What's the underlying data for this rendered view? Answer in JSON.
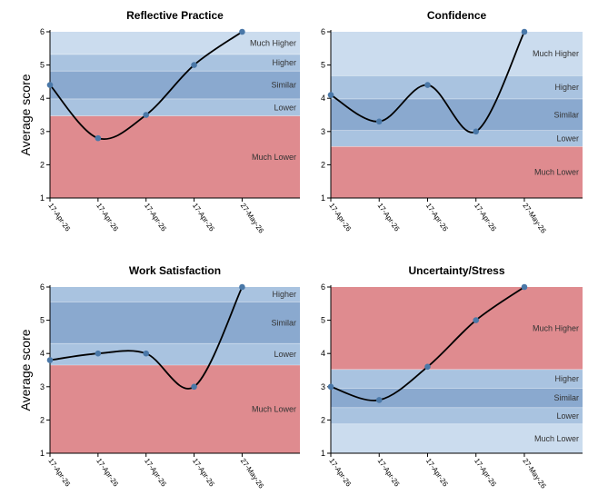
{
  "chart_data": [
    {
      "type": "line",
      "title": "Reflective Practice",
      "ylabel": "Average score",
      "ylim": [
        1,
        6
      ],
      "yticks": [
        "1",
        "2",
        "3",
        "4",
        "5",
        "6"
      ],
      "x": [
        "17-Apr-26",
        "17-Apr-26",
        "17-Apr-26",
        "17-Apr-26",
        "27-May-26"
      ],
      "values": [
        4.4,
        2.8,
        3.5,
        5.0,
        6.0
      ],
      "bands": [
        {
          "label": "Much Lower",
          "from": 1.0,
          "to": 3.47,
          "color": "#df8b8f"
        },
        {
          "label": "Lower",
          "from": 3.47,
          "to": 3.98,
          "color": "#a9c3e0"
        },
        {
          "label": "Similar",
          "from": 3.98,
          "to": 4.82,
          "color": "#8aa9cf"
        },
        {
          "label": "Higher",
          "from": 4.82,
          "to": 5.32,
          "color": "#a9c3e0"
        },
        {
          "label": "Much Higher",
          "from": 5.32,
          "to": 6.0,
          "color": "#cbdcee"
        }
      ]
    },
    {
      "type": "line",
      "title": "Confidence",
      "ylabel": "",
      "ylim": [
        1,
        6
      ],
      "yticks": [
        "1",
        "2",
        "3",
        "4",
        "5",
        "6"
      ],
      "x": [
        "17-Apr-26",
        "17-Apr-26",
        "17-Apr-26",
        "17-Apr-26",
        "27-May-26"
      ],
      "values": [
        4.1,
        3.3,
        4.4,
        3.0,
        6.0
      ],
      "bands": [
        {
          "label": "Much Lower",
          "from": 1.0,
          "to": 2.55,
          "color": "#df8b8f"
        },
        {
          "label": "Lower",
          "from": 2.55,
          "to": 3.03,
          "color": "#a9c3e0"
        },
        {
          "label": "Similar",
          "from": 3.03,
          "to": 3.98,
          "color": "#8aa9cf"
        },
        {
          "label": "Higher",
          "from": 3.98,
          "to": 4.68,
          "color": "#a9c3e0"
        },
        {
          "label": "Much Higher",
          "from": 4.68,
          "to": 6.0,
          "color": "#cbdcee"
        }
      ]
    },
    {
      "type": "line",
      "title": "Work Satisfaction",
      "ylabel": "Average score",
      "ylim": [
        1,
        6
      ],
      "yticks": [
        "1",
        "2",
        "3",
        "4",
        "5",
        "6"
      ],
      "x": [
        "17-Apr-26",
        "17-Apr-26",
        "17-Apr-26",
        "17-Apr-26",
        "27-May-26"
      ],
      "values": [
        3.8,
        4.0,
        4.0,
        3.0,
        6.0
      ],
      "bands": [
        {
          "label": "Much Lower",
          "from": 1.0,
          "to": 3.65,
          "color": "#df8b8f"
        },
        {
          "label": "Lower",
          "from": 3.65,
          "to": 4.3,
          "color": "#a9c3e0"
        },
        {
          "label": "Similar",
          "from": 4.3,
          "to": 5.55,
          "color": "#8aa9cf"
        },
        {
          "label": "Higher",
          "from": 5.55,
          "to": 6.0,
          "color": "#a9c3e0"
        }
      ]
    },
    {
      "type": "line",
      "title": "Uncertainty/Stress",
      "ylabel": "",
      "ylim": [
        1,
        6
      ],
      "yticks": [
        "1",
        "2",
        "3",
        "4",
        "5",
        "6"
      ],
      "x": [
        "17-Apr-26",
        "17-Apr-26",
        "17-Apr-26",
        "17-Apr-26",
        "27-May-26"
      ],
      "values": [
        3.0,
        2.6,
        3.6,
        5.0,
        6.0
      ],
      "bands": [
        {
          "label": "Much Lower",
          "from": 1.0,
          "to": 1.88,
          "color": "#cbdcee"
        },
        {
          "label": "Lower",
          "from": 1.88,
          "to": 2.37,
          "color": "#a9c3e0"
        },
        {
          "label": "Similar",
          "from": 2.37,
          "to": 2.95,
          "color": "#8aa9cf"
        },
        {
          "label": "Higher",
          "from": 2.95,
          "to": 3.52,
          "color": "#a9c3e0"
        },
        {
          "label": "Much Higher",
          "from": 3.52,
          "to": 6.0,
          "color": "#df8b8f"
        }
      ]
    }
  ],
  "colors": {
    "line": "#000000",
    "point": "#4a78a8",
    "axis": "#000000"
  }
}
